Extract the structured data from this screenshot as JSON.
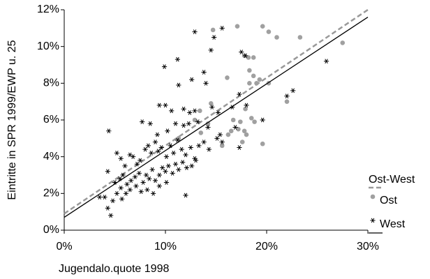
{
  "chart_data": {
    "type": "scatter",
    "xlabel": "Jugendalo.quote 1998",
    "ylabel": "Eintritte in SPR 1999/EWP u. 25",
    "xlim": [
      0,
      30
    ],
    "ylim": [
      0,
      12
    ],
    "xticks": [
      {
        "value": 0,
        "label": "0%"
      },
      {
        "value": 10,
        "label": "10%"
      },
      {
        "value": 20,
        "label": "20%"
      },
      {
        "value": 30,
        "label": "30%"
      }
    ],
    "yticks": [
      {
        "value": 0,
        "label": "0%"
      },
      {
        "value": 2,
        "label": "2%"
      },
      {
        "value": 4,
        "label": "4%"
      },
      {
        "value": 6,
        "label": "6%"
      },
      {
        "value": 8,
        "label": "8%"
      },
      {
        "value": 10,
        "label": "10%"
      },
      {
        "value": 12,
        "label": "12%"
      }
    ],
    "grid": false,
    "legend": "right",
    "series": [
      {
        "name": "Ost-West",
        "type": "line",
        "dashed": true,
        "color": "#999999",
        "x": [
          0,
          30
        ],
        "values": [
          0.9,
          12.0
        ]
      },
      {
        "name": "Ost",
        "type": "scatter",
        "marker": "circle",
        "color": "#a0a0a0",
        "x": [
          14.7,
          17.1,
          19.6,
          20.2,
          21.0,
          23.3,
          27.5,
          17.8,
          18.2,
          18.7,
          18.3,
          18.7,
          18.3,
          19.0,
          20.2,
          16.1,
          19.3,
          14.5,
          13.4,
          22.0,
          16.7,
          17.4,
          18.5,
          18.8,
          17.2,
          17.8,
          16.5,
          16.2,
          18.0,
          15.6,
          17.6,
          19.6,
          14.2,
          11.3,
          12.9,
          13.5,
          17.9
        ],
        "values": [
          10.9,
          11.1,
          11.1,
          10.8,
          10.5,
          10.5,
          10.2,
          9.5,
          9.4,
          9.4,
          8.7,
          8.4,
          8.0,
          8.0,
          8.0,
          8.3,
          8.2,
          6.9,
          6.5,
          7.0,
          6.0,
          5.9,
          6.1,
          5.9,
          5.5,
          5.4,
          5.4,
          5.2,
          5.2,
          4.6,
          4.8,
          4.7,
          5.8,
          5.0,
          6.0,
          5.3,
          6.6
        ]
      },
      {
        "name": "West",
        "type": "scatter",
        "marker": "asterisk",
        "color": "#000000",
        "fit": {
          "x": [
            0,
            30
          ],
          "values": [
            0.7,
            11.6
          ]
        },
        "x": [
          12.9,
          15.6,
          14.8,
          14.5,
          11.2,
          9.9,
          12.6,
          13.8,
          11.3,
          14.0,
          17.5,
          17.9,
          9.4,
          10.0,
          10.6,
          11.8,
          12.4,
          12.9,
          14.6,
          15.2,
          16.6,
          18.0,
          19.6,
          22.0,
          22.6,
          25.9,
          17.3,
          4.4,
          7.7,
          8.5,
          9.2,
          10.2,
          11.0,
          11.8,
          12.3,
          13.2,
          14.2,
          15.4,
          15.1,
          15.6,
          16.9,
          17.3,
          4.3,
          5.2,
          5.6,
          6.0,
          6.5,
          6.8,
          7.2,
          7.5,
          8.0,
          8.3,
          8.6,
          9.0,
          9.3,
          9.6,
          10.1,
          10.5,
          10.8,
          11.2,
          11.6,
          12.0,
          12.5,
          12.9,
          13.3,
          13.8,
          14.3,
          5.0,
          5.5,
          5.8,
          6.2,
          6.6,
          7.0,
          7.4,
          7.8,
          8.1,
          8.4,
          8.7,
          9.0,
          9.4,
          9.7,
          10.0,
          10.3,
          10.7,
          11.0,
          11.3,
          11.7,
          12.1,
          12.6,
          13.0,
          4.0,
          4.3,
          4.8,
          5.2,
          5.6,
          6.1,
          6.5,
          7.1,
          7.6,
          8.2,
          8.8,
          9.4,
          10.1,
          12.0,
          4.6,
          3.5,
          5.7
        ],
        "values": [
          10.8,
          11.0,
          10.5,
          9.8,
          9.3,
          8.9,
          8.2,
          8.6,
          7.9,
          8.0,
          9.7,
          9.5,
          6.8,
          6.8,
          6.5,
          6.6,
          6.4,
          6.5,
          6.7,
          6.4,
          6.7,
          6.8,
          6.0,
          7.3,
          7.6,
          9.2,
          7.4,
          5.4,
          5.9,
          5.8,
          5.2,
          5.4,
          5.8,
          5.7,
          5.8,
          5.9,
          5.6,
          5.2,
          5.0,
          4.8,
          5.6,
          4.5,
          3.2,
          4.2,
          3.9,
          3.5,
          4.1,
          4.0,
          3.6,
          3.8,
          4.4,
          4.6,
          4.2,
          4.8,
          4.3,
          4.5,
          4.0,
          4.6,
          4.2,
          4.9,
          4.4,
          4.1,
          4.5,
          3.9,
          4.6,
          4.8,
          4.4,
          2.6,
          2.8,
          3.0,
          2.5,
          2.7,
          2.9,
          3.1,
          2.6,
          3.0,
          2.8,
          3.3,
          2.7,
          3.0,
          3.4,
          3.2,
          3.5,
          3.1,
          3.6,
          3.3,
          3.7,
          3.4,
          3.5,
          3.8,
          1.8,
          1.2,
          1.6,
          2.0,
          2.3,
          2.0,
          2.2,
          2.4,
          2.1,
          2.2,
          2.0,
          2.4,
          2.6,
          1.9,
          0.8,
          1.8,
          1.7
        ]
      }
    ]
  }
}
